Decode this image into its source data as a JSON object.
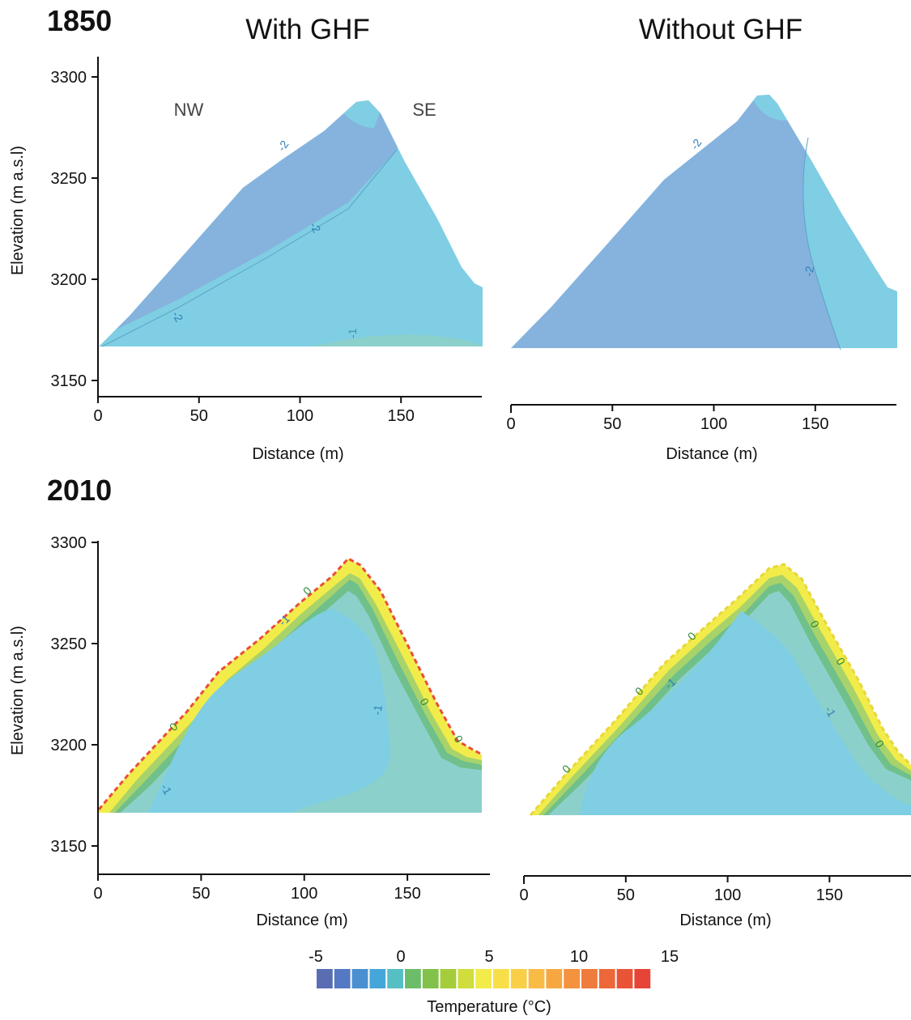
{
  "figure": {
    "row_titles": [
      "1850",
      "2010"
    ],
    "column_titles": [
      "With GHF",
      "Without GHF"
    ],
    "direction_labels": {
      "left": "NW",
      "right": "SE"
    }
  },
  "colorbar": {
    "label": "Temperature (°C)",
    "ticks": [
      "-5",
      "0",
      "5",
      "10",
      "15"
    ],
    "colors": [
      "#5a6db3",
      "#5478c3",
      "#4a8fd0",
      "#45a7d9",
      "#56bfc4",
      "#6bbd6a",
      "#82c24a",
      "#a5cc3a",
      "#d0dd3c",
      "#f2ec4a",
      "#f8df4a",
      "#f9cf48",
      "#f8bb45",
      "#f6a742",
      "#f3923f",
      "#ef7c3c",
      "#ec6839",
      "#e95436",
      "#e64436"
    ]
  },
  "chart_data": [
    {
      "type": "contour",
      "row": "1850",
      "column": "With GHF",
      "xlabel": "Distance (m)",
      "ylabel": "Elevation (m a.s.l)",
      "xlim": [
        0,
        190
      ],
      "ylim": [
        3135,
        3310
      ],
      "xticks": [
        "0",
        "50",
        "100",
        "150"
      ],
      "yticks": [
        "3150",
        "3200",
        "3250",
        "3300"
      ],
      "contour_labels": [
        "-2",
        "-2",
        "-2",
        "-1"
      ],
      "zones_degC": [
        -2.5,
        -1.5,
        -0.5
      ]
    },
    {
      "type": "contour",
      "row": "1850",
      "column": "Without GHF",
      "xlabel": "Distance (m)",
      "ylabel": "",
      "xlim": [
        0,
        190
      ],
      "ylim": [
        3135,
        3310
      ],
      "xticks": [
        "0",
        "50",
        "100",
        "150"
      ],
      "yticks": [],
      "contour_labels": [
        "-2",
        "-2"
      ],
      "zones_degC": [
        -2.5,
        -1.5
      ]
    },
    {
      "type": "contour",
      "row": "2010",
      "column": "With GHF",
      "xlabel": "Distance (m)",
      "ylabel": "Elevation (m a.s.l)",
      "xlim": [
        0,
        190
      ],
      "ylim": [
        3135,
        3310
      ],
      "xticks": [
        "0",
        "50",
        "100",
        "150"
      ],
      "yticks": [
        "3150",
        "3200",
        "3250",
        "3300"
      ],
      "contour_labels": [
        "-1",
        "-1",
        "-1",
        "0",
        "0",
        "0",
        "0"
      ],
      "zones_degC": [
        -1.5,
        -0.5,
        0.5,
        2,
        5,
        10,
        14
      ]
    },
    {
      "type": "contour",
      "row": "2010",
      "column": "Without GHF",
      "xlabel": "Distance (m)",
      "ylabel": "",
      "xlim": [
        0,
        190
      ],
      "ylim": [
        3135,
        3310
      ],
      "xticks": [
        "0",
        "50",
        "100",
        "150"
      ],
      "yticks": [],
      "contour_labels": [
        "-1",
        "-1",
        "0",
        "0",
        "0",
        "0",
        "0",
        "0"
      ],
      "zones_degC": [
        -1.5,
        -0.5,
        0.5,
        2,
        4.5
      ]
    }
  ]
}
